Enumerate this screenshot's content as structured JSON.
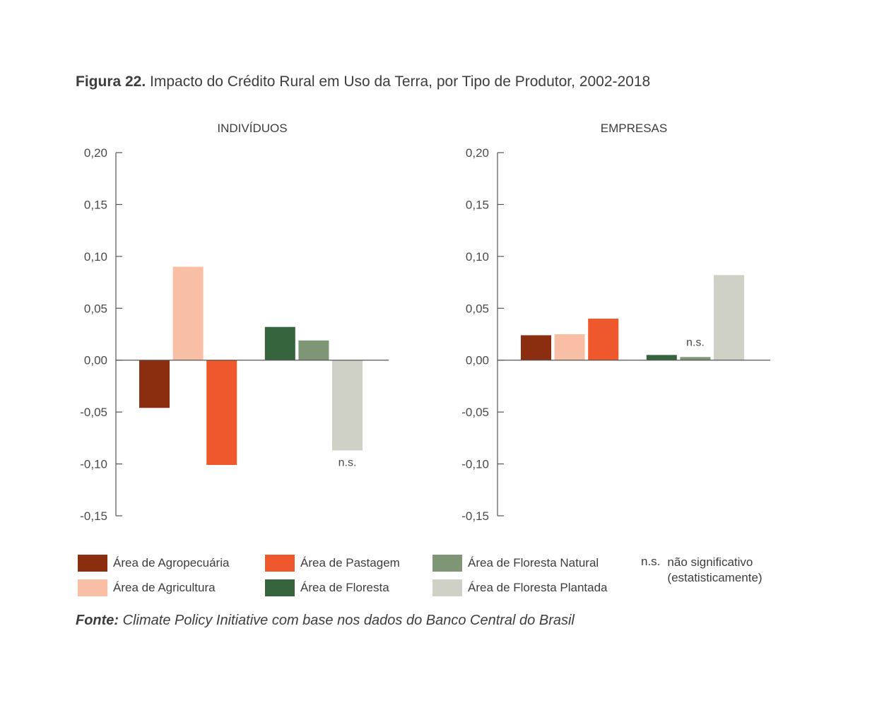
{
  "figure": {
    "number": "Figura 22.",
    "title": "Impacto do Crédito Rural em Uso da Terra, por Tipo de Produtor, 2002-2018"
  },
  "colors": {
    "agropecuaria": "#8b2e10",
    "agricultura": "#f9bfa4",
    "pastagem": "#ef572c",
    "floresta": "#35643d",
    "floresta_natural": "#7e9676",
    "floresta_plantada": "#cfd1c7",
    "axis": "#555555"
  },
  "chart_data": [
    {
      "type": "bar",
      "title": "INDIVÍDUOS",
      "ylim": [
        -0.15,
        0.2
      ],
      "yticks": [
        0.2,
        0.15,
        0.1,
        0.05,
        0.0,
        -0.05,
        -0.1,
        -0.15
      ],
      "ytick_labels": [
        "0,20",
        "0,15",
        "0,10",
        "0,05",
        "0,00",
        "-0,05",
        "-0,10",
        "-0,15"
      ],
      "grid": false,
      "series": [
        {
          "name": "Área de Agropecuária",
          "value": -0.046,
          "color_key": "agropecuaria",
          "note": ""
        },
        {
          "name": "Área de Agricultura",
          "value": 0.09,
          "color_key": "agricultura",
          "note": ""
        },
        {
          "name": "Área de Pastagem",
          "value": -0.101,
          "color_key": "pastagem",
          "note": ""
        },
        {
          "name": "Área de Floresta",
          "value": 0.032,
          "color_key": "floresta",
          "note": ""
        },
        {
          "name": "Área de Floresta Natural",
          "value": 0.019,
          "color_key": "floresta_natural",
          "note": ""
        },
        {
          "name": "Área de Floresta Plantada",
          "value": -0.087,
          "color_key": "floresta_plantada",
          "note": "n.s."
        }
      ]
    },
    {
      "type": "bar",
      "title": "EMPRESAS",
      "ylim": [
        -0.15,
        0.2
      ],
      "yticks": [
        0.2,
        0.15,
        0.1,
        0.05,
        0.0,
        -0.05,
        -0.1,
        -0.15
      ],
      "ytick_labels": [
        "0,20",
        "0,15",
        "0,10",
        "0,05",
        "0,00",
        "-0,05",
        "-0,10",
        "-0,15"
      ],
      "grid": false,
      "series": [
        {
          "name": "Área de Agropecuária",
          "value": 0.024,
          "color_key": "agropecuaria",
          "note": ""
        },
        {
          "name": "Área de Agricultura",
          "value": 0.025,
          "color_key": "agricultura",
          "note": ""
        },
        {
          "name": "Área de Pastagem",
          "value": 0.04,
          "color_key": "pastagem",
          "note": ""
        },
        {
          "name": "Área de Floresta",
          "value": 0.005,
          "color_key": "floresta",
          "note": ""
        },
        {
          "name": "Área de Floresta Natural",
          "value": 0.003,
          "color_key": "floresta_natural",
          "note": "n.s."
        },
        {
          "name": "Área de Floresta Plantada",
          "value": 0.082,
          "color_key": "floresta_plantada",
          "note": ""
        }
      ]
    }
  ],
  "legend": [
    {
      "label": "Área de Agropecuária",
      "color_key": "agropecuaria"
    },
    {
      "label": "Área de Agricultura",
      "color_key": "agricultura"
    },
    {
      "label": "Área de Pastagem",
      "color_key": "pastagem"
    },
    {
      "label": "Área de Floresta",
      "color_key": "floresta"
    },
    {
      "label": "Área de Floresta Natural",
      "color_key": "floresta_natural"
    },
    {
      "label": "Área de Floresta Plantada",
      "color_key": "floresta_plantada"
    }
  ],
  "ns_note": {
    "abbr": "n.s.",
    "line1": "não significativo",
    "line2": "(estatisticamente)"
  },
  "source": {
    "label": "Fonte:",
    "text": " Climate Policy Initiative com base nos dados do Banco Central do Brasil"
  }
}
